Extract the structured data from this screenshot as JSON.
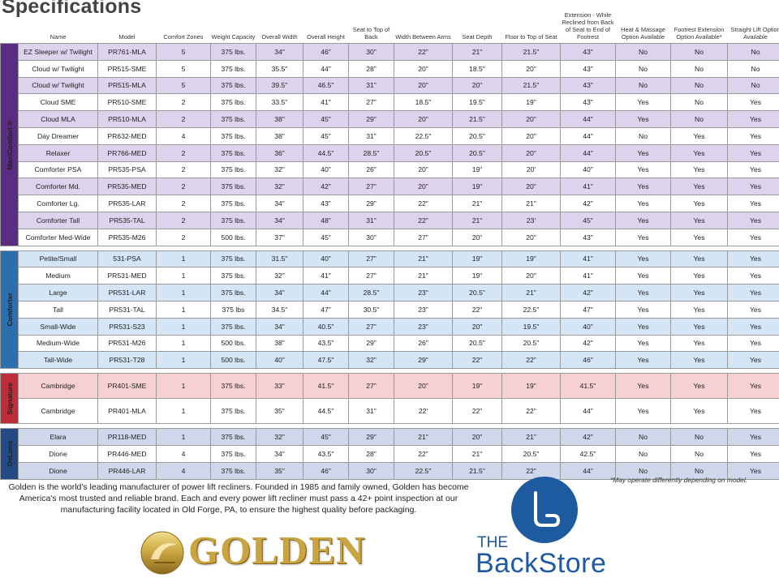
{
  "page_title": "Specifications",
  "columns": [
    "Name",
    "Model",
    "Comfort Zones",
    "Weight Capacity",
    "Overall Width",
    "Overall Height",
    "Seat to Top of Back",
    "Width Between Arms",
    "Seat Depth",
    "Floor to Top of Seat",
    "Extension - While Reclined from Back of Seat to End of Footrest",
    "Heat & Massage Option Available",
    "Footrest Extension Option Available*",
    "Straight Lift Option Available"
  ],
  "groups": [
    {
      "label": "MaxiComfort®",
      "key": "maxi",
      "color": "#5a2d82",
      "rows": [
        [
          "EZ Sleeper w/ Twilight",
          "PR761-MLA",
          "5",
          "375 lbs.",
          "34\"",
          "46\"",
          "30\"",
          "22\"",
          "21\"",
          "21.5\"",
          "43\"",
          "No",
          "No",
          "No"
        ],
        [
          "Cloud w/ Twilight",
          "PR515-SME",
          "5",
          "375 lbs.",
          "35.5\"",
          "44\"",
          "28\"",
          "20\"",
          "18.5\"",
          "20\"",
          "43\"",
          "No",
          "No",
          "No"
        ],
        [
          "Cloud w/ Twilight",
          "PR515-MLA",
          "5",
          "375 lbs.",
          "39.5\"",
          "46.5\"",
          "31\"",
          "20\"",
          "20\"",
          "21.5\"",
          "43\"",
          "No",
          "No",
          "No"
        ],
        [
          "Cloud SME",
          "PR510-SME",
          "2",
          "375 lbs.",
          "33.5\"",
          "41\"",
          "27\"",
          "18.5\"",
          "19.5\"",
          "19\"",
          "43\"",
          "Yes",
          "No",
          "Yes"
        ],
        [
          "Cloud MLA",
          "PR510-MLA",
          "2",
          "375 lbs.",
          "38\"",
          "45\"",
          "29\"",
          "20\"",
          "21.5\"",
          "20\"",
          "44\"",
          "Yes",
          "No",
          "Yes"
        ],
        [
          "Day Dreamer",
          "PR632-MED",
          "4",
          "375 lbs.",
          "38\"",
          "45\"",
          "31\"",
          "22.5\"",
          "20.5\"",
          "20\"",
          "44\"",
          "No",
          "Yes",
          "Yes"
        ],
        [
          "Relaxer",
          "PR766-MED",
          "2",
          "375 lbs.",
          "36\"",
          "44.5\"",
          "28.5\"",
          "20.5\"",
          "20.5\"",
          "20\"",
          "44\"",
          "Yes",
          "Yes",
          "Yes"
        ],
        [
          "Comforter PSA",
          "PR535-PSA",
          "2",
          "375 lbs.",
          "32\"",
          "40\"",
          "26\"",
          "20\"",
          "19\"",
          "20'",
          "40\"",
          "Yes",
          "Yes",
          "Yes"
        ],
        [
          "Comforter Md.",
          "PR535-MED",
          "2",
          "375 lbs.",
          "32\"",
          "42\"",
          "27\"",
          "20\"",
          "19\"",
          "20\"",
          "41\"",
          "Yes",
          "Yes",
          "Yes"
        ],
        [
          "Comforter Lg.",
          "PR535-LAR",
          "2",
          "375 lbs.",
          "34\"",
          "43\"",
          "29\"",
          "22\"",
          "21\"",
          "21\"",
          "42\"",
          "Yes",
          "Yes",
          "Yes"
        ],
        [
          "Comforter Tall",
          "PR535-TAL",
          "2",
          "375 lbs.",
          "34\"",
          "48\"",
          "31\"",
          "22\"",
          "21\"",
          "23'",
          "45\"",
          "Yes",
          "Yes",
          "Yes"
        ],
        [
          "Comforter Med-Wide",
          "PR535-M26",
          "2",
          "500 lbs.",
          "37\"",
          "45\"",
          "30\"",
          "27\"",
          "20\"",
          "20\"",
          "43\"",
          "Yes",
          "Yes",
          "Yes"
        ]
      ]
    },
    {
      "label": "Comforter",
      "key": "comf",
      "color": "#2c6fae",
      "rows": [
        [
          "Petite/Small",
          "531-PSA",
          "1",
          "375 lbs.",
          "31.5\"",
          "40\"",
          "27\"",
          "21\"",
          "19\"",
          "19\"",
          "41\"",
          "Yes",
          "Yes",
          "Yes"
        ],
        [
          "Medium",
          "PR531-MED",
          "1",
          "375 lbs.",
          "32\"",
          "41\"",
          "27\"",
          "21\"",
          "19\"",
          "20\"",
          "41\"",
          "Yes",
          "Yes",
          "Yes"
        ],
        [
          "Large",
          "PR531-LAR",
          "1",
          "375 lbs.",
          "34\"",
          "44\"",
          "28.5\"",
          "23\"",
          "20.5\"",
          "21\"",
          "42\"",
          "Yes",
          "Yes",
          "Yes"
        ],
        [
          "Tall",
          "PR531-TAL",
          "1",
          "375 lbs",
          "34.5\"",
          "47\"",
          "30.5\"",
          "23\"",
          "22\"",
          "22.5\"",
          "47\"",
          "Yes",
          "Yes",
          "Yes"
        ],
        [
          "Small-Wide",
          "PR531-S23",
          "1",
          "375 lbs.",
          "34\"",
          "40.5\"",
          "27\"",
          "23\"",
          "20\"",
          "19.5\"",
          "40\"",
          "Yes",
          "Yes",
          "Yes"
        ],
        [
          "Medium-Wide",
          "PR531-M26",
          "1",
          "500 lbs.",
          "38\"",
          "43.5\"",
          "29\"",
          "26\"",
          "20.5\"",
          "20.5\"",
          "42\"",
          "Yes",
          "Yes",
          "Yes"
        ],
        [
          "Tall-Wide",
          "PR531-T28",
          "1",
          "500 lbs.",
          "40\"",
          "47.5\"",
          "32\"",
          "29\"",
          "22\"",
          "22\"",
          "46\"",
          "Yes",
          "Yes",
          "Yes"
        ]
      ]
    },
    {
      "label": "Signature",
      "key": "sig",
      "color": "#bd2d3a",
      "rows": [
        [
          "Cambridge",
          "PR401-SME",
          "1",
          "375 lbs.",
          "33\"",
          "41.5\"",
          "27\"",
          "20\"",
          "19\"",
          "19\"",
          "41.5\"",
          "Yes",
          "Yes",
          "Yes"
        ],
        [
          "Cambridge",
          "PR401-MLA",
          "1",
          "375 lbs.",
          "35\"",
          "44.5\"",
          "31\"",
          "22'",
          "22\"",
          "22\"",
          "44\"",
          "Yes",
          "Yes",
          "Yes"
        ]
      ]
    },
    {
      "label": "DeLuna",
      "key": "delu",
      "color": "#244a86",
      "rows": [
        [
          "Elara",
          "PR118-MED",
          "1",
          "375 lbs.",
          "32\"",
          "45\"",
          "29\"",
          "21\"",
          "20\"",
          "21\"",
          "42\"",
          "No",
          "No",
          "Yes"
        ],
        [
          "Dione",
          "PR446-MED",
          "4",
          "375 lbs.",
          "34\"",
          "43.5\"",
          "28\"",
          "22\"",
          "21\"",
          "20.5\"",
          "42.5\"",
          "No",
          "No",
          "Yes"
        ],
        [
          "Dione",
          "PR446-LAR",
          "4",
          "375 lbs.",
          "35\"",
          "46\"",
          "30\"",
          "22.5\"",
          "21.5\"",
          "22\"",
          "44\"",
          "No",
          "No",
          "Yes"
        ]
      ]
    }
  ],
  "footnote": "*May operate differently depending on model.",
  "about_text": "Golden is the world's leading manufacturer of power lift recliners. Founded in 1985 and family owned, Golden has become America's most trusted and reliable brand. Each and every power lift recliner must pass a 42+ point inspection at our manufacturing facility located in Old Forge, PA, to ensure the highest quality before packaging.",
  "logos": {
    "golden": "GOLDEN",
    "backstore_the": "THE",
    "backstore_name": "BackStore"
  },
  "colors": {
    "golden": "#c9a43f",
    "backstore_blue": "#1e5aa0"
  },
  "icons": [
    "golden-emblem-icon",
    "backstore-chair-icon"
  ]
}
